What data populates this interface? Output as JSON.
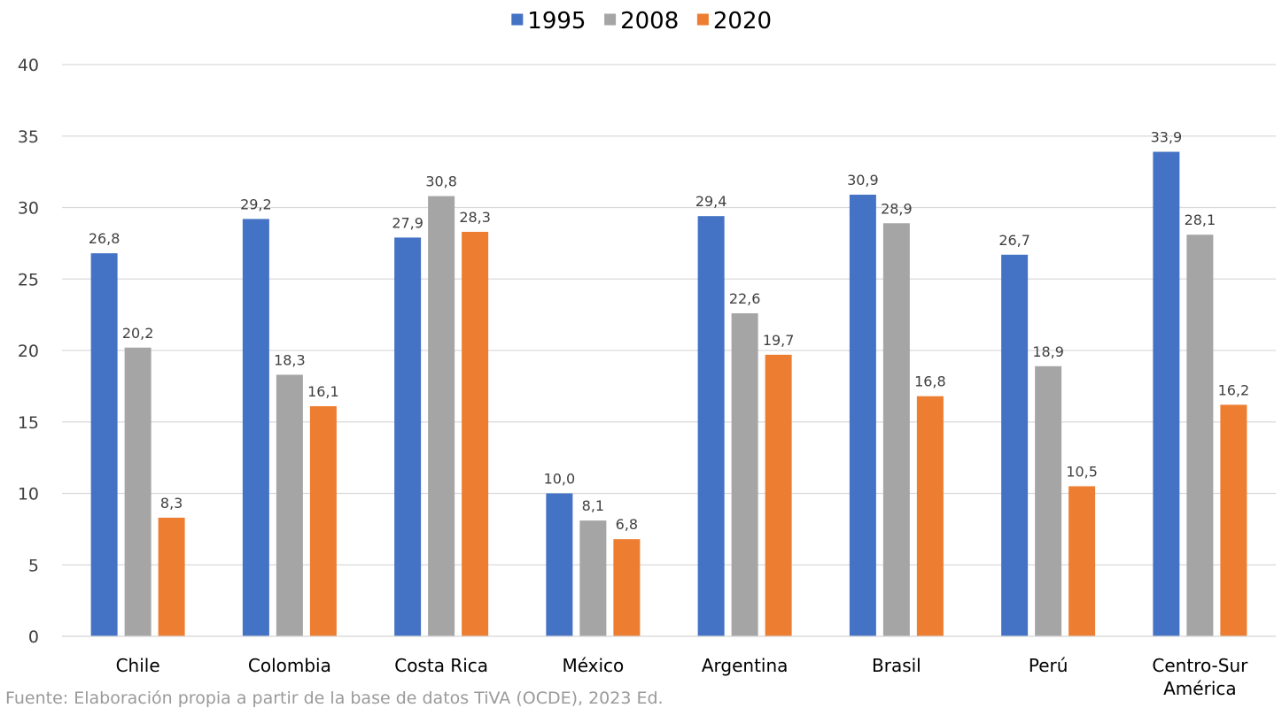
{
  "chart_data": {
    "type": "bar",
    "categories": [
      "Chile",
      "Colombia",
      "Costa Rica",
      "México",
      "Argentina",
      "Brasil",
      "Perú",
      "Centro-Sur América"
    ],
    "category_label_lines": [
      [
        "Chile"
      ],
      [
        "Colombia"
      ],
      [
        "Costa Rica"
      ],
      [
        "México"
      ],
      [
        "Argentina"
      ],
      [
        "Brasil"
      ],
      [
        "Perú"
      ],
      [
        "Centro-Sur",
        "América"
      ]
    ],
    "series": [
      {
        "name": "1995",
        "color": "#4472c4",
        "values": [
          26.8,
          29.2,
          27.9,
          10.0,
          29.4,
          30.9,
          26.7,
          33.9
        ],
        "labels": [
          "26,8",
          "29,2",
          "27,9",
          "10,0",
          "29,4",
          "30,9",
          "26,7",
          "33,9"
        ]
      },
      {
        "name": "2008",
        "color": "#a5a5a5",
        "values": [
          20.2,
          18.3,
          30.8,
          8.1,
          22.6,
          28.9,
          18.9,
          28.1
        ],
        "labels": [
          "20,2",
          "18,3",
          "30,8",
          "8,1",
          "22,6",
          "28,9",
          "18,9",
          "28,1"
        ]
      },
      {
        "name": "2020",
        "color": "#ed7d31",
        "values": [
          8.3,
          16.1,
          28.3,
          6.8,
          19.7,
          16.8,
          10.5,
          16.2
        ],
        "labels": [
          "8,3",
          "16,1",
          "28,3",
          "6,8",
          "19,7",
          "16,8",
          "10,5",
          "16,2"
        ]
      }
    ],
    "ylim": [
      0,
      40
    ],
    "yticks": [
      "0",
      "5",
      "10",
      "15",
      "20",
      "25",
      "30",
      "35",
      "40"
    ],
    "grid": true,
    "legend_position": "top-center",
    "gridline_color": "#d9d9d9",
    "axis_text_color": "#404040"
  },
  "source": "Fuente: Elaboración propia a partir de la base de datos TiVA (OCDE), 2023 Ed."
}
